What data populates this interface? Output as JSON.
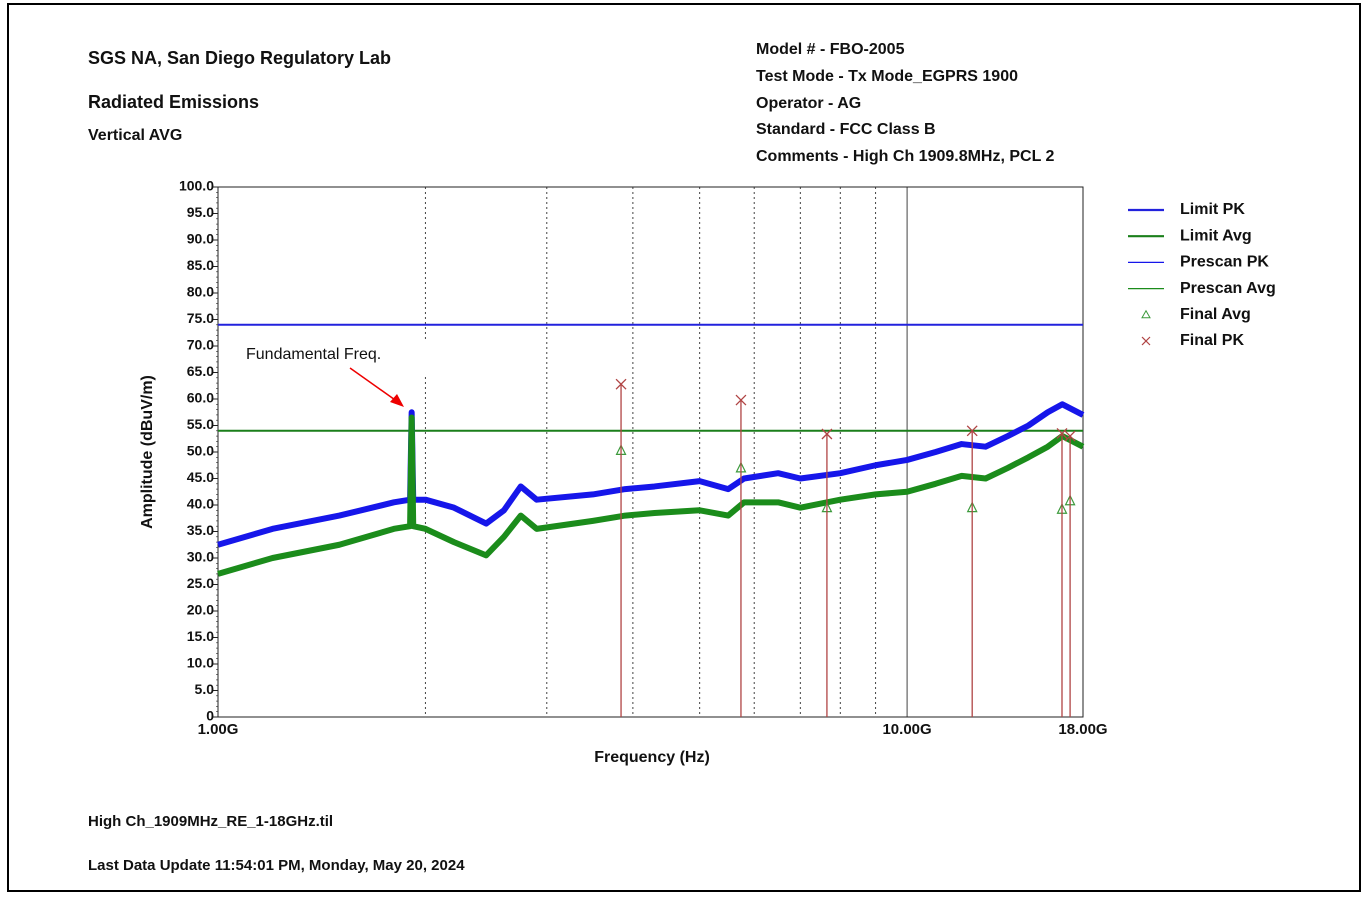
{
  "chart_data": {
    "type": "line",
    "title": "SGS NA, San Diego Regulatory Lab",
    "subtitle": "Radiated Emissions",
    "plot_label": "Vertical AVG",
    "info": [
      "Model # - FBO-2005",
      "Test Mode - Tx Mode_EGPRS 1900",
      "Operator - AG",
      "Standard - FCC Class B",
      "Comments - High Ch 1909.8MHz, PCL 2"
    ],
    "footer": [
      "High Ch_1909MHz_RE_1-18GHz.til",
      "Last Data Update 11:54:01 PM, Monday, May 20, 2024"
    ],
    "annotation": "Fundamental Freq.",
    "xlabel": "Frequency (Hz)",
    "ylabel": "Amplitude (dBuV/m)",
    "xscale": "log",
    "xlim": [
      1000000000,
      18000000000
    ],
    "xticks": [
      {
        "value": 1000000000,
        "label": "1.00G"
      },
      {
        "value": 10000000000,
        "label": "10.00G"
      },
      {
        "value": 18000000000,
        "label": "18.00G"
      }
    ],
    "xgrid": [
      2000000000,
      3000000000,
      4000000000,
      5000000000,
      6000000000,
      7000000000,
      8000000000,
      9000000000
    ],
    "ylim": [
      0,
      100
    ],
    "yticks": [
      0,
      {
        "value": 5,
        "label": "5.0"
      },
      {
        "value": 10,
        "label": "10.0"
      },
      {
        "value": 15,
        "label": "15.0"
      },
      {
        "value": 20,
        "label": "20.0"
      },
      {
        "value": 25,
        "label": "25.0"
      },
      {
        "value": 30,
        "label": "30.0"
      },
      {
        "value": 35,
        "label": "35.0"
      },
      {
        "value": 40,
        "label": "40.0"
      },
      {
        "value": 45,
        "label": "45.0"
      },
      {
        "value": 50,
        "label": "50.0"
      },
      {
        "value": 55,
        "label": "55.0"
      },
      {
        "value": 60,
        "label": "60.0"
      },
      {
        "value": 65,
        "label": "65.0"
      },
      {
        "value": 70,
        "label": "70.0"
      },
      {
        "value": 75,
        "label": "75.0"
      },
      {
        "value": 80,
        "label": "80.0"
      },
      {
        "value": 85,
        "label": "85.0"
      },
      {
        "value": 90,
        "label": "90.0"
      },
      {
        "value": 95,
        "label": "95.0"
      },
      {
        "value": 100,
        "label": "100.0"
      }
    ],
    "legend": "right",
    "series": [
      {
        "name": "Limit PK",
        "color": "#2222dd",
        "width": 2,
        "x": [
          1000000000,
          18000000000
        ],
        "values": [
          74,
          74
        ]
      },
      {
        "name": "Limit Avg",
        "color": "#1a7f1a",
        "width": 2,
        "x": [
          1000000000,
          18000000000
        ],
        "values": [
          54,
          54
        ]
      },
      {
        "name": "Prescan PK",
        "color": "#1616ea",
        "width": 6,
        "x": [
          1000000000,
          1200000000,
          1500000000,
          1800000000,
          1900000000,
          1910000000,
          1920000000,
          2000000000,
          2200000000,
          2450000000,
          2600000000,
          2750000000,
          2900000000,
          3500000000,
          3900000000,
          4300000000,
          5000000000,
          5500000000,
          5800000000,
          6500000000,
          7000000000,
          8000000000,
          9000000000,
          10000000000,
          11000000000,
          12000000000,
          13000000000,
          14000000000,
          15000000000,
          16000000000,
          16800000000,
          18000000000
        ],
        "values": [
          32.5,
          35.5,
          38,
          40.5,
          41,
          57.5,
          41,
          41,
          39.5,
          36.5,
          39,
          43.5,
          41,
          42,
          43,
          43.5,
          44.5,
          43,
          45,
          46,
          45,
          46,
          47.5,
          48.5,
          50,
          51.5,
          51,
          53,
          55,
          57.5,
          59,
          57
        ]
      },
      {
        "name": "Prescan Avg",
        "color": "#1b8c1b",
        "width": 6,
        "x": [
          1000000000,
          1200000000,
          1500000000,
          1800000000,
          1900000000,
          1910000000,
          1920000000,
          2000000000,
          2200000000,
          2450000000,
          2600000000,
          2750000000,
          2900000000,
          3500000000,
          3900000000,
          4300000000,
          5000000000,
          5500000000,
          5800000000,
          6500000000,
          7000000000,
          8000000000,
          9000000000,
          10000000000,
          11000000000,
          12000000000,
          13000000000,
          14000000000,
          15000000000,
          16000000000,
          16800000000,
          18000000000
        ],
        "values": [
          27,
          30,
          32.5,
          35.5,
          36,
          56.5,
          36,
          35.5,
          33,
          30.5,
          34,
          38,
          35.5,
          37,
          38,
          38.5,
          39,
          38,
          40.5,
          40.5,
          39.5,
          41,
          42,
          42.5,
          44,
          45.5,
          45,
          47,
          49,
          51,
          53,
          51
        ]
      },
      {
        "name": "Final Avg",
        "color": "#3c9a3c",
        "marker": "triangle",
        "x": [
          3845000000,
          5740000000,
          7650000000,
          12430000000,
          16780000000,
          17240000000
        ],
        "values": [
          50.3,
          47,
          39.5,
          39.5,
          39.2,
          40.8
        ]
      },
      {
        "name": "Final PK",
        "color": "#b04444",
        "marker": "x",
        "stems": true,
        "x": [
          3845000000,
          5740000000,
          7650000000,
          12430000000,
          16780000000,
          17240000000
        ],
        "values": [
          62.8,
          59.8,
          53.4,
          54,
          53.5,
          53
        ]
      }
    ]
  }
}
